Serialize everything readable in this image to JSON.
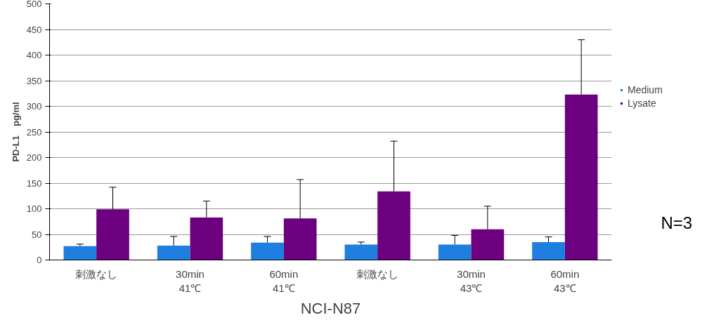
{
  "chart_data": {
    "type": "bar",
    "xlabel": "NCI-N87",
    "ylabel": "PD-L1　pg/ml",
    "categories": [
      "刺激なし",
      "30min\n41℃",
      "60min\n41℃",
      "刺激なし",
      "30min\n43℃",
      "60min\n43℃"
    ],
    "series": [
      {
        "name": "Medium",
        "color": "#1f7fe0",
        "values": [
          27,
          28,
          34,
          30,
          30,
          35
        ],
        "errors": [
          [
            27,
            31
          ],
          [
            28,
            46
          ],
          [
            34,
            46
          ],
          [
            30,
            35
          ],
          [
            30,
            48
          ],
          [
            35,
            45
          ]
        ]
      },
      {
        "name": "Lysate",
        "color": "#6c007f",
        "values": [
          99,
          83,
          81,
          134,
          60,
          323
        ],
        "errors": [
          [
            99,
            142
          ],
          [
            83,
            115
          ],
          [
            81,
            157
          ],
          [
            134,
            232
          ],
          [
            60,
            105
          ],
          [
            323,
            430
          ]
        ]
      }
    ],
    "ylim": [
      0,
      500
    ],
    "yticks": [
      0,
      50,
      100,
      150,
      200,
      250,
      300,
      350,
      400,
      450,
      500
    ],
    "grid": "y",
    "legend": "right",
    "annotations": [
      "N=3"
    ]
  }
}
